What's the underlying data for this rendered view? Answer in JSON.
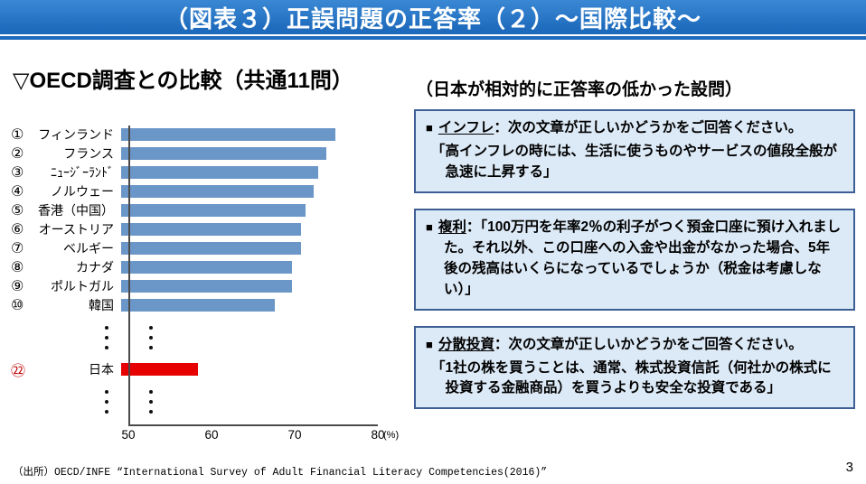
{
  "header": {
    "title": "（図表３）正誤問題の正答率（２）～国際比較～"
  },
  "left_panel": {
    "title": "▽OECD調査との比較（共通11問）"
  },
  "right_panel": {
    "title": "（日本が相対的に正答率の低かった設問）",
    "boxes": [
      {
        "bullet": "■",
        "keyword": "インフレ",
        "lead": "：次の文章が正しいかどうかをご回答ください。",
        "quote": "「高インフレの時には、生活に使うものやサービスの値段全般が急速に上昇する」"
      },
      {
        "bullet": "■",
        "keyword": "複利",
        "lead": "：",
        "quote": "「100万円を年率2％の利子がつく預金口座に預け入れました。それ以外、この口座への入金や出金がなかった場合、5年後の残高はいくらになっているでしょうか（税金は考慮しない）」"
      },
      {
        "bullet": "■",
        "keyword": "分散投資",
        "lead": "：次の文章が正しいかどうかをご回答ください。",
        "quote": "「1社の株を買うことは、通常、株式投資信託（何社かの株式に投資する金融商品）を買うよりも安全な投資である」"
      }
    ]
  },
  "chart_data": {
    "type": "bar",
    "orientation": "horizontal",
    "xlim": [
      50,
      80
    ],
    "xticks": [
      50,
      60,
      70,
      80
    ],
    "x_unit": "(%)",
    "grid": false,
    "legend": false,
    "bar_color": "#6a96c8",
    "highlight_color": "#e60000",
    "rows": [
      {
        "rank": "①",
        "label": "フィンランド",
        "value": 75,
        "highlight": false
      },
      {
        "rank": "②",
        "label": "フランス",
        "value": 74,
        "highlight": false
      },
      {
        "rank": "③",
        "label": "ﾆｭｰｼﾞｰﾗﾝﾄﾞ",
        "value": 73,
        "highlight": false
      },
      {
        "rank": "④",
        "label": "ノルウェー",
        "value": 72.5,
        "highlight": false
      },
      {
        "rank": "⑤",
        "label": "香港（中国）",
        "value": 71.5,
        "highlight": false
      },
      {
        "rank": "⑥",
        "label": "オーストリア",
        "value": 71,
        "highlight": false
      },
      {
        "rank": "⑦",
        "label": "ベルギー",
        "value": 71,
        "highlight": false
      },
      {
        "rank": "⑧",
        "label": "カナダ",
        "value": 70,
        "highlight": false
      },
      {
        "rank": "⑨",
        "label": "ポルトガル",
        "value": 70,
        "highlight": false
      },
      {
        "rank": "⑩",
        "label": "韓国",
        "value": 68,
        "highlight": false
      },
      {
        "dots": true
      },
      {
        "rank": "㉒",
        "label": "日本",
        "value": 59,
        "highlight": true
      },
      {
        "dots": true
      }
    ]
  },
  "footer": {
    "source": "（出所）OECD/INFE “International Survey of Adult Financial Literacy Competencies(2016)”",
    "page": "3"
  },
  "colors": {
    "header_blue": "#1e6bbd",
    "header_blue_light": "#3a88d4",
    "box_bg": "#dce9f6",
    "box_border": "#3e5f94",
    "bar_blue": "#6a96c8",
    "japan_red": "#e60000",
    "rank_red": "#c00000"
  }
}
